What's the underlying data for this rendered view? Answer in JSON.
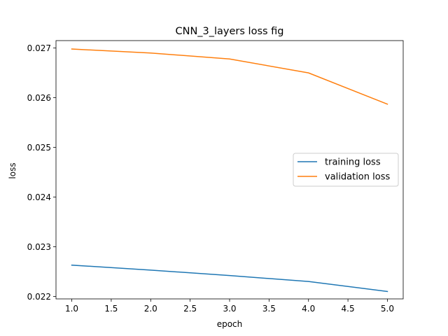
{
  "chart_data": {
    "type": "line",
    "title": "CNN_3_layers loss fig",
    "xlabel": "epoch",
    "ylabel": "loss",
    "x": [
      1.0,
      2.0,
      3.0,
      4.0,
      5.0
    ],
    "xlim": [
      0.8,
      5.2
    ],
    "ylim": [
      0.02195,
      0.02715
    ],
    "xticks": [
      1.0,
      1.5,
      2.0,
      2.5,
      3.0,
      3.5,
      4.0,
      4.5,
      5.0
    ],
    "xtick_labels": [
      "1.0",
      "1.5",
      "2.0",
      "2.5",
      "3.0",
      "3.5",
      "4.0",
      "4.5",
      "5.0"
    ],
    "yticks": [
      0.022,
      0.023,
      0.024,
      0.025,
      0.026,
      0.027
    ],
    "ytick_labels": [
      "0.022",
      "0.023",
      "0.024",
      "0.025",
      "0.026",
      "0.027"
    ],
    "grid": false,
    "legend_position": "center-right",
    "series": [
      {
        "name": "training loss",
        "color": "#1f77b4",
        "values": [
          0.02263,
          0.02253,
          0.02242,
          0.0223,
          0.0221
        ]
      },
      {
        "name": "validation loss",
        "color": "#ff7f0e",
        "values": [
          0.02698,
          0.0269,
          0.02678,
          0.0265,
          0.02587
        ]
      }
    ]
  }
}
